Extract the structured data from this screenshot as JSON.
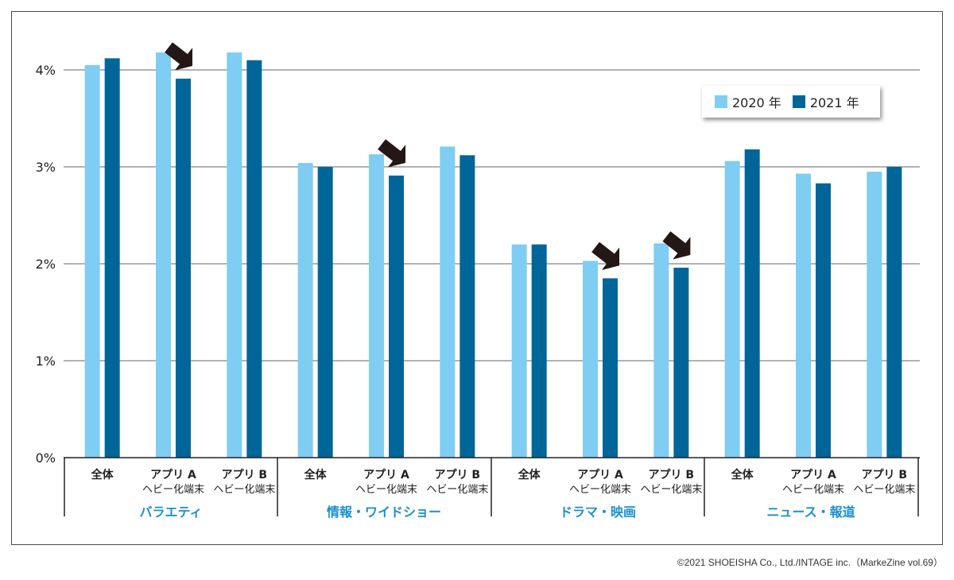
{
  "chart_data": {
    "type": "bar",
    "y_unit": "%",
    "ylim": [
      0,
      4.8
    ],
    "yticks": [
      0,
      1,
      2,
      3,
      4
    ],
    "ytick_labels": [
      "0%",
      "1%",
      "2%",
      "3%",
      "4%"
    ],
    "grid": true,
    "legend_position": "top-right",
    "groups": [
      {
        "label": "バラエティ",
        "categories": [
          {
            "line1": "全体",
            "line2": ""
          },
          {
            "line1": "アプリ A",
            "line2": "ヘビー化端末",
            "arrow": true
          },
          {
            "line1": "アプリ B",
            "line2": "ヘビー化端末"
          }
        ]
      },
      {
        "label": "情報・ワイドショー",
        "categories": [
          {
            "line1": "全体",
            "line2": ""
          },
          {
            "line1": "アプリ A",
            "line2": "ヘビー化端末",
            "arrow": true
          },
          {
            "line1": "アプリ B",
            "line2": "ヘビー化端末"
          }
        ]
      },
      {
        "label": "ドラマ・映画",
        "categories": [
          {
            "line1": "全体",
            "line2": ""
          },
          {
            "line1": "アプリ A",
            "line2": "ヘビー化端末",
            "arrow": true
          },
          {
            "line1": "アプリ B",
            "line2": "ヘビー化端末",
            "arrow": true
          }
        ]
      },
      {
        "label": "ニュース・報道",
        "categories": [
          {
            "line1": "全体",
            "line2": ""
          },
          {
            "line1": "アプリ A",
            "line2": "ヘビー化端末"
          },
          {
            "line1": "アプリ B",
            "line2": "ヘビー化端末"
          }
        ]
      }
    ],
    "series": [
      {
        "name": "2020 年",
        "color": "#7fcdf2",
        "values": [
          4.05,
          4.18,
          4.18,
          3.04,
          3.13,
          3.21,
          2.2,
          2.03,
          2.21,
          3.06,
          2.93,
          2.95
        ]
      },
      {
        "name": "2021 年",
        "color": "#006699",
        "values": [
          4.12,
          3.91,
          4.1,
          3.0,
          2.91,
          3.12,
          2.2,
          1.85,
          1.96,
          3.18,
          2.83,
          3.0
        ]
      }
    ]
  },
  "colors": {
    "group_label": "#1a8fd1",
    "arrow": "#231815",
    "grid": "#666666"
  },
  "copyright": "©2021 SHOEISHA Co., Ltd./INTAGE inc.（MarkeZine vol.69）"
}
